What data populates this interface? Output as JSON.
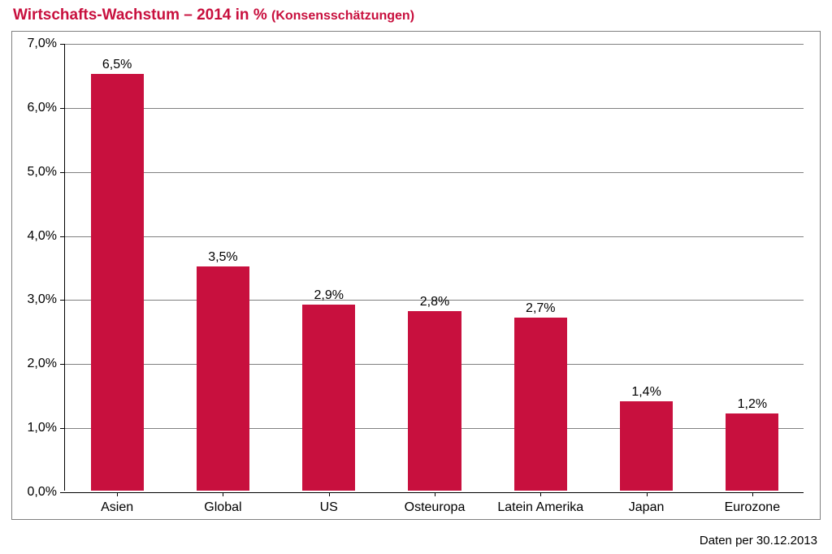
{
  "chart": {
    "type": "bar",
    "title_main": "Wirtschafts-Wachstum – 2014 in % ",
    "title_sub": "(Konsensschätzungen)",
    "title_color": "#c8103e",
    "title_main_fontsize": 19,
    "title_sub_fontsize": 16,
    "categories": [
      "Asien",
      "Global",
      "US",
      "Osteuropa",
      "Latein Amerika",
      "Japan",
      "Eurozone"
    ],
    "values": [
      6.5,
      3.5,
      2.9,
      2.8,
      2.7,
      1.4,
      1.2
    ],
    "value_labels": [
      "6,5%",
      "3,5%",
      "2,9%",
      "2,8%",
      "2,7%",
      "1,4%",
      "1,2%"
    ],
    "bar_color": "#c8103e",
    "ylim": [
      0,
      7
    ],
    "ytick_step": 1,
    "ytick_labels": [
      "0,0%",
      "1,0%",
      "2,0%",
      "3,0%",
      "4,0%",
      "5,0%",
      "6,0%",
      "7,0%"
    ],
    "gridline_color": "#808080",
    "axis_color": "#000000",
    "frame_border_color": "#808080",
    "background_color": "#ffffff",
    "bar_width_ratio": 0.5,
    "label_fontsize": 16,
    "tick_fontsize": 16,
    "value_label_fontsize": 16,
    "value_label_color": "#000000",
    "footer_text": "Daten per 30.12.2013",
    "footer_fontsize": 15
  }
}
